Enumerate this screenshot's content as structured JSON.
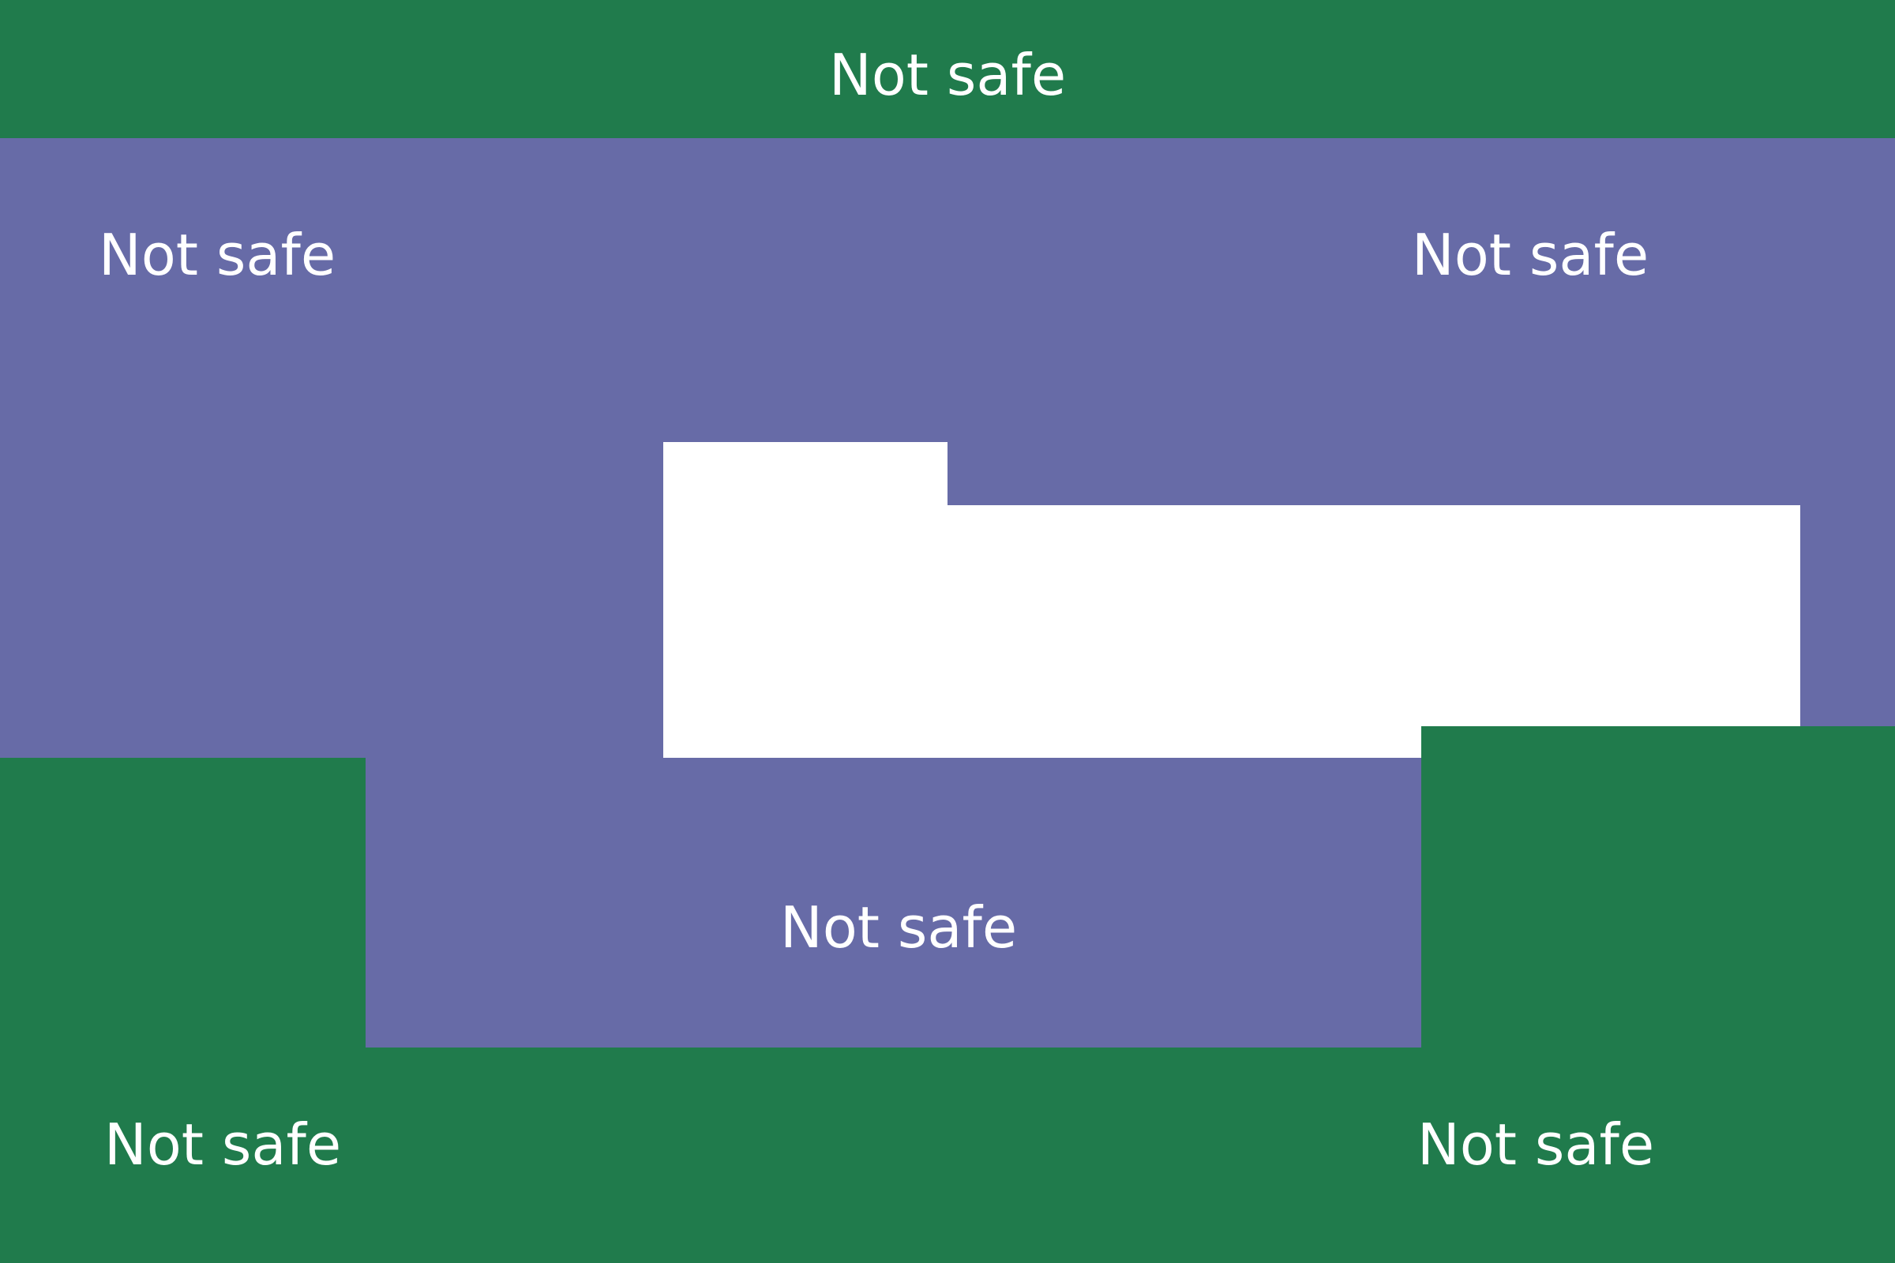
{
  "colors": {
    "green": "#207b4c",
    "purple": "#676ba7",
    "white": "#ffffff",
    "text": "#ffffff"
  },
  "zones": [
    {
      "id": "top-band",
      "color": "green",
      "label": "Not safe"
    },
    {
      "id": "middle-region",
      "color": "purple",
      "label": "Not safe"
    },
    {
      "id": "bottom-region",
      "color": "green",
      "label": "Not safe"
    },
    {
      "id": "safe-area",
      "color": "white",
      "label": ""
    }
  ],
  "labels": {
    "top": "Not safe",
    "upper_left": "Not safe",
    "upper_right": "Not safe",
    "center": "Not safe",
    "bottom_left": "Not safe",
    "bottom_right": "Not safe"
  }
}
